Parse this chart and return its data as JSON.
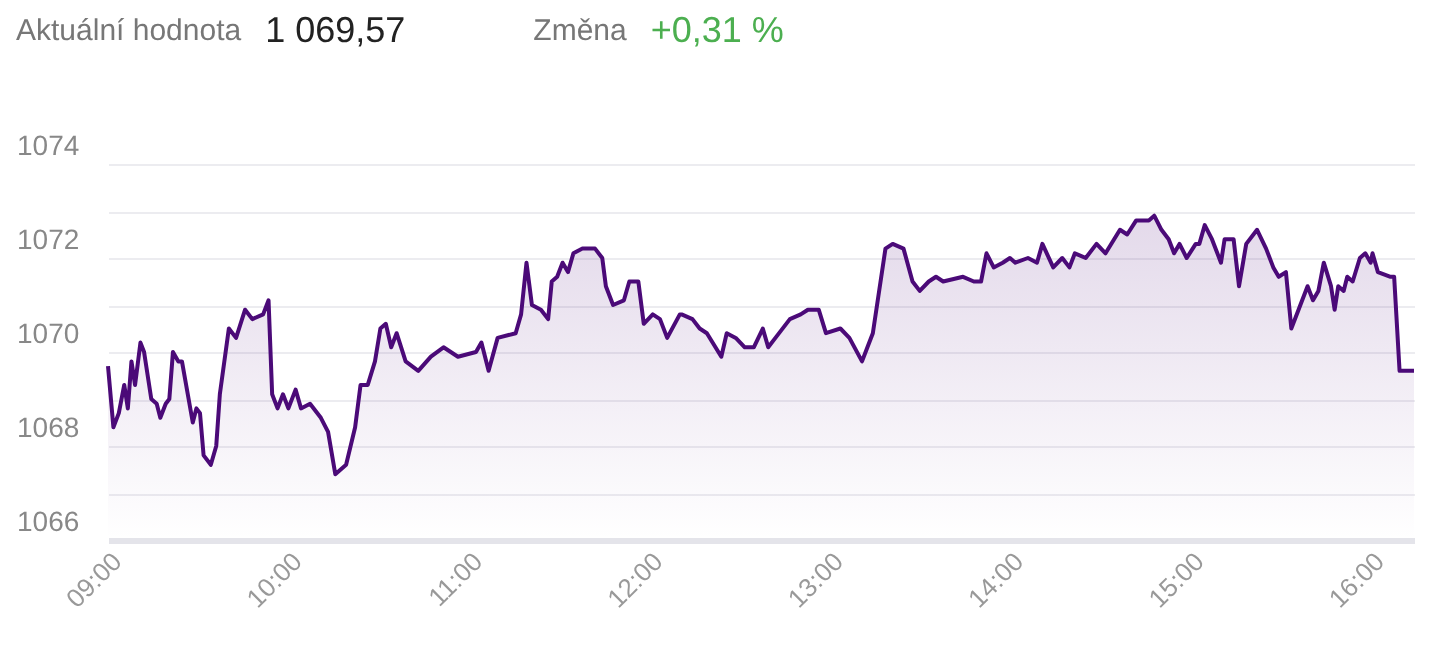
{
  "chart_data": {
    "type": "area",
    "title": "Aktuální hodnota",
    "subtitle": "1 069,57",
    "annotations": [
      "Změna",
      "+0,31 %"
    ],
    "x": [
      9.0,
      9.03,
      9.06,
      9.09,
      9.11,
      9.13,
      9.15,
      9.18,
      9.2,
      9.24,
      9.27,
      9.29,
      9.32,
      9.34,
      9.36,
      9.39,
      9.41,
      9.47,
      9.49,
      9.51,
      9.53,
      9.57,
      9.6,
      9.62,
      9.67,
      9.71,
      9.76,
      9.8,
      9.86,
      9.89,
      9.91,
      9.94,
      9.97,
      10.0,
      10.04,
      10.07,
      10.12,
      10.18,
      10.22,
      10.26,
      10.32,
      10.37,
      10.4,
      10.44,
      10.48,
      10.51,
      10.54,
      10.57,
      10.6,
      10.65,
      10.72,
      10.79,
      10.86,
      10.94,
      11.04,
      11.07,
      11.11,
      11.16,
      11.26,
      11.29,
      11.32,
      11.35,
      11.4,
      11.44,
      11.46,
      11.49,
      11.52,
      11.55,
      11.58,
      11.63,
      11.7,
      11.74,
      11.76,
      11.8,
      11.86,
      11.89,
      11.94,
      11.97,
      12.02,
      12.06,
      12.1,
      12.17,
      12.18,
      12.24,
      12.28,
      12.32,
      12.4,
      12.43,
      12.48,
      12.53,
      12.58,
      12.63,
      12.66,
      12.7,
      12.78,
      12.84,
      12.88,
      12.94,
      12.98,
      13.06,
      13.11,
      13.18,
      13.21,
      13.24,
      13.31,
      13.35,
      13.41,
      13.46,
      13.5,
      13.55,
      13.59,
      13.63,
      13.74,
      13.8,
      13.84,
      13.87,
      13.91,
      13.96,
      14.0,
      14.03,
      14.1,
      14.15,
      14.18,
      14.24,
      14.29,
      14.33,
      14.36,
      14.42,
      14.48,
      14.53,
      14.61,
      14.65,
      14.7,
      14.77,
      14.8,
      14.84,
      14.88,
      14.91,
      14.94,
      14.98,
      15.03,
      15.05,
      15.08,
      15.12,
      15.17,
      15.19,
      15.24,
      15.27,
      15.31,
      15.37,
      15.42,
      15.46,
      15.49,
      15.53,
      15.56,
      15.6,
      15.65,
      15.68,
      15.71,
      15.74,
      15.78,
      15.8,
      15.82,
      15.85,
      15.87,
      15.9,
      15.94,
      15.97,
      16.0,
      16.01,
      16.04,
      16.11,
      16.13,
      16.16,
      16.24
    ],
    "series": [
      {
        "color": "#4b0a78",
        "values": [
          1069.7,
          1068.4,
          1068.7,
          1069.3,
          1068.8,
          1069.8,
          1069.3,
          1070.2,
          1070.0,
          1069.0,
          1068.9,
          1068.6,
          1068.9,
          1069.0,
          1070.0,
          1069.8,
          1069.8,
          1068.5,
          1068.8,
          1068.7,
          1067.8,
          1067.6,
          1068.0,
          1069.1,
          1070.5,
          1070.3,
          1070.9,
          1070.7,
          1070.8,
          1071.1,
          1069.1,
          1068.8,
          1069.1,
          1068.8,
          1069.2,
          1068.8,
          1068.9,
          1068.6,
          1068.3,
          1067.4,
          1067.6,
          1068.4,
          1069.3,
          1069.3,
          1069.8,
          1070.5,
          1070.6,
          1070.1,
          1070.4,
          1069.8,
          1069.6,
          1069.9,
          1070.1,
          1069.9,
          1070.0,
          1070.2,
          1069.6,
          1070.3,
          1070.4,
          1070.8,
          1071.9,
          1071.0,
          1070.9,
          1070.7,
          1071.5,
          1071.6,
          1071.9,
          1071.7,
          1072.1,
          1072.2,
          1072.2,
          1072.0,
          1071.4,
          1071.0,
          1071.1,
          1071.5,
          1071.5,
          1070.6,
          1070.8,
          1070.7,
          1070.3,
          1070.8,
          1070.8,
          1070.7,
          1070.5,
          1070.4,
          1069.9,
          1070.4,
          1070.3,
          1070.1,
          1070.1,
          1070.5,
          1070.1,
          1070.3,
          1070.7,
          1070.8,
          1070.9,
          1070.9,
          1070.4,
          1070.5,
          1070.3,
          1069.8,
          1070.1,
          1070.4,
          1072.2,
          1072.3,
          1072.2,
          1071.5,
          1071.3,
          1071.5,
          1071.6,
          1071.5,
          1071.6,
          1071.5,
          1071.5,
          1072.1,
          1071.8,
          1071.9,
          1072.0,
          1071.9,
          1072.0,
          1071.9,
          1072.3,
          1071.8,
          1072.0,
          1071.8,
          1072.1,
          1072.0,
          1072.3,
          1072.1,
          1072.6,
          1072.5,
          1072.8,
          1072.8,
          1072.9,
          1072.6,
          1072.4,
          1072.1,
          1072.3,
          1072.0,
          1072.3,
          1072.3,
          1072.7,
          1072.4,
          1071.9,
          1072.4,
          1072.4,
          1071.4,
          1072.3,
          1072.6,
          1072.2,
          1071.8,
          1071.6,
          1071.7,
          1070.5,
          1070.9,
          1071.4,
          1071.1,
          1071.3,
          1071.9,
          1071.4,
          1070.9,
          1071.4,
          1071.3,
          1071.6,
          1071.5,
          1072.0,
          1072.1,
          1071.9,
          1072.1,
          1071.7,
          1071.6,
          1071.6,
          1069.6,
          1069.6
        ]
      }
    ],
    "xlim": [
      9,
      16.24
    ],
    "xticks": [
      {
        "value": 9,
        "label": "09:00"
      },
      {
        "value": 10,
        "label": "10:00"
      },
      {
        "value": 11,
        "label": "11:00"
      },
      {
        "value": 12,
        "label": "12:00"
      },
      {
        "value": 13,
        "label": "13:00"
      },
      {
        "value": 14,
        "label": "14:00"
      },
      {
        "value": 15,
        "label": "15:00"
      },
      {
        "value": 16,
        "label": "16:00"
      }
    ],
    "ylim": [
      1066,
      1074
    ],
    "yticks": [
      1066,
      {
        "value": 1067,
        "label": null
      },
      1068,
      {
        "value": 1069,
        "label": null
      },
      1070,
      {
        "value": 1071,
        "label": null
      },
      1072,
      {
        "value": 1073,
        "label": null
      },
      1074
    ],
    "grid": "y",
    "marker": "none",
    "line_style": "solid"
  }
}
